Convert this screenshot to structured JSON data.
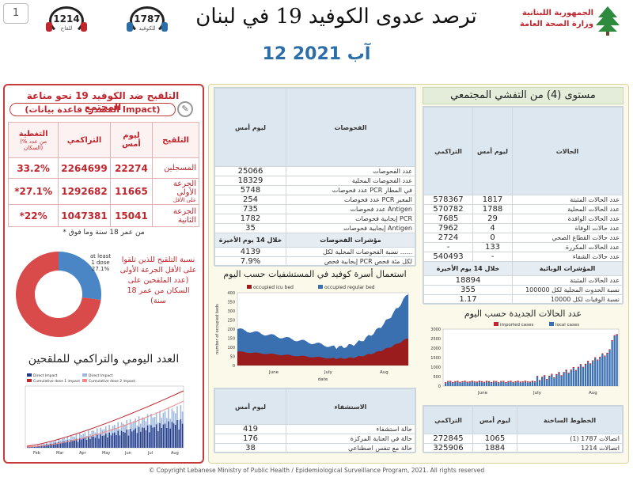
{
  "header": {
    "page_number": "1",
    "title": "ترصد عدوى الكوفيد 19 في لبنان",
    "date": "12 آب 2021",
    "hotline_covid": {
      "number": "1787",
      "label": "للكوفيد"
    },
    "hotline_vaccine": {
      "number": "1214",
      "label": "للقاح"
    },
    "ministry_line1": "الجمهورية اللبنانية",
    "ministry_line2": "وزارة الصحة العامة"
  },
  "vaccination": {
    "title": "التلقيح ضد الكوفيد 19 نحو مناعة المجتمع",
    "source": "(المصدر: قاعدة بيانات Impact)",
    "columns": [
      "التلقيح",
      "ليوم أمس",
      "التراكمي",
      "التغطية",
      "(% من عدد السكان)"
    ],
    "rows": [
      {
        "label": "المسجلين",
        "today": "22274",
        "cumulative": "2264699",
        "coverage": "33.2%"
      },
      {
        "label": "الجرعة الأولى",
        "sublabel": "على الأقل",
        "today": "11665",
        "cumulative": "1292682",
        "coverage": "*27.1%"
      },
      {
        "label": "الجرعة الثانية",
        "today": "15041",
        "cumulative": "1047381",
        "coverage": "*22%"
      }
    ],
    "footnote": "* من عمر 18 سنة وما فوق",
    "donut": {
      "label_en_1": "at least",
      "label_en_2": "1 dose",
      "label_en_3": "27.1%",
      "percent": 27.1,
      "color_fill": "#4a86c5",
      "color_rest": "#d94a4a",
      "caption": "نسبة التلقيح للذين تلقوا على الأقل الجرعة الأولى (عدد الملقحين على السكان من عمر 18 سنة)"
    },
    "chart_title": "العدد اليومي والتراكمي للملقحين",
    "chart_legend": [
      "Direct Impact",
      "Direct Impact",
      "Cumulative dose 1 impact",
      "Cumulative dose 2 impact"
    ],
    "chart_months": [
      "Feb",
      "Mar",
      "Apr",
      "May",
      "Jun",
      "Jul",
      "Aug"
    ]
  },
  "tests": {
    "header": [
      "الفحوصات",
      "ليوم أمس"
    ],
    "rows": [
      {
        "label": "عدد الفحوصات",
        "value": "25066"
      },
      {
        "label": "عدد الفحوصات المحلية",
        "value": "18329"
      },
      {
        "label": "عدد فحوصات PCR في المطار",
        "value": "5748"
      },
      {
        "label": "عدد فحوصات PCR المعبر",
        "value": "254"
      },
      {
        "label": "عدد فحوصات Antigen",
        "value": "735"
      },
      {
        "label": "إيجابية فحوصات PCR",
        "value": "1782"
      },
      {
        "label": "إيجابية فحوصات Antigen",
        "value": "35"
      }
    ],
    "indicators_header": [
      "مؤشرات الفحوصات",
      "خلال 14 يوم الأخيرة"
    ],
    "indicators": [
      {
        "label": "نسبة الفحوصات المحلية لكل ......",
        "value": "4139"
      },
      {
        "label": "إيجابية فحص PCR لكل مئة فحص",
        "value": "7.9%"
      }
    ]
  },
  "icu_chart": {
    "title": "استعمال أسرة كوفيد في المستشفيات حسب اليوم",
    "legend": [
      {
        "label": "occupied icu bed",
        "color": "#9b1c1c"
      },
      {
        "label": "occupied regular bed",
        "color": "#3a6fb0"
      }
    ],
    "ylabel": "number of occupied beds",
    "xlabel": "date",
    "months": [
      "June",
      "July",
      "Aug"
    ],
    "yticks": [
      "0",
      "50",
      "100",
      "150",
      "200",
      "250",
      "300",
      "350",
      "400"
    ]
  },
  "hospital": {
    "header": [
      "الاستشفاء",
      "ليوم أمس"
    ],
    "rows": [
      {
        "label": "حالة استشفاء",
        "value": "419"
      },
      {
        "label": "حالة في العناية المركزة",
        "value": "176"
      },
      {
        "label": "حالة مع تنفس اصطناعي",
        "value": "38"
      }
    ]
  },
  "community": {
    "title": "مستوى (4) من التفشي المجتمعي",
    "columns": [
      "الحالات",
      "ليوم أمس",
      "التراكمي"
    ],
    "rows": [
      {
        "label": "عدد الحالات المثبتة",
        "today": "1817",
        "cumulative": "578367"
      },
      {
        "label": "عدد الحالات المحلية",
        "today": "1788",
        "cumulative": "570782"
      },
      {
        "label": "عدد الحالات الوافدة",
        "today": "29",
        "cumulative": "7685"
      },
      {
        "label": "عدد حالات الوفاة",
        "today": "4",
        "cumulative": "7962"
      },
      {
        "label": "عدد حالات القطاع الصحي",
        "today": "0",
        "cumulative": "2724"
      },
      {
        "label": "عدد الحالات المكررة",
        "today": "133",
        "cumulative": "-"
      },
      {
        "label": "عدد حالات الشفاء",
        "today": "-",
        "cumulative": "540493"
      }
    ],
    "indicators_header": [
      "المؤشرات الوبائية",
      "خلال 14 يوم الأخيرة"
    ],
    "indicators": [
      {
        "label": "عدد الحالات المثبتة",
        "value": "18894"
      },
      {
        "label": "نسبة الحدوث المحلية لكل 100000",
        "value": "355"
      },
      {
        "label": "نسبة الوفيات لكل 10000",
        "value": "1.17"
      }
    ]
  },
  "new_cases_chart": {
    "title": "عدد الحالات الجديدة حسب اليوم",
    "legend": [
      {
        "label": "imported cases",
        "color": "#c0262d"
      },
      {
        "label": "local cases",
        "color": "#3a6fb0"
      }
    ],
    "months": [
      "June",
      "July",
      "Aug"
    ],
    "yticks": [
      "0",
      "500",
      "1000",
      "1500",
      "2000",
      "2500",
      "3000"
    ]
  },
  "hotlines": {
    "header": [
      "الخطوط الساخنة",
      "ليوم أمس",
      "التراكمي"
    ],
    "rows": [
      {
        "label": "اتصالات 1787 (1)",
        "today": "1065",
        "cumulative": "272845"
      },
      {
        "label": "اتصالات 1214",
        "today": "1884",
        "cumulative": "325906"
      }
    ]
  },
  "footer": "© Copyright Lebanese Ministry of Public Health / Epidemiological Surveillance Program, 2021. All rights reserved"
}
